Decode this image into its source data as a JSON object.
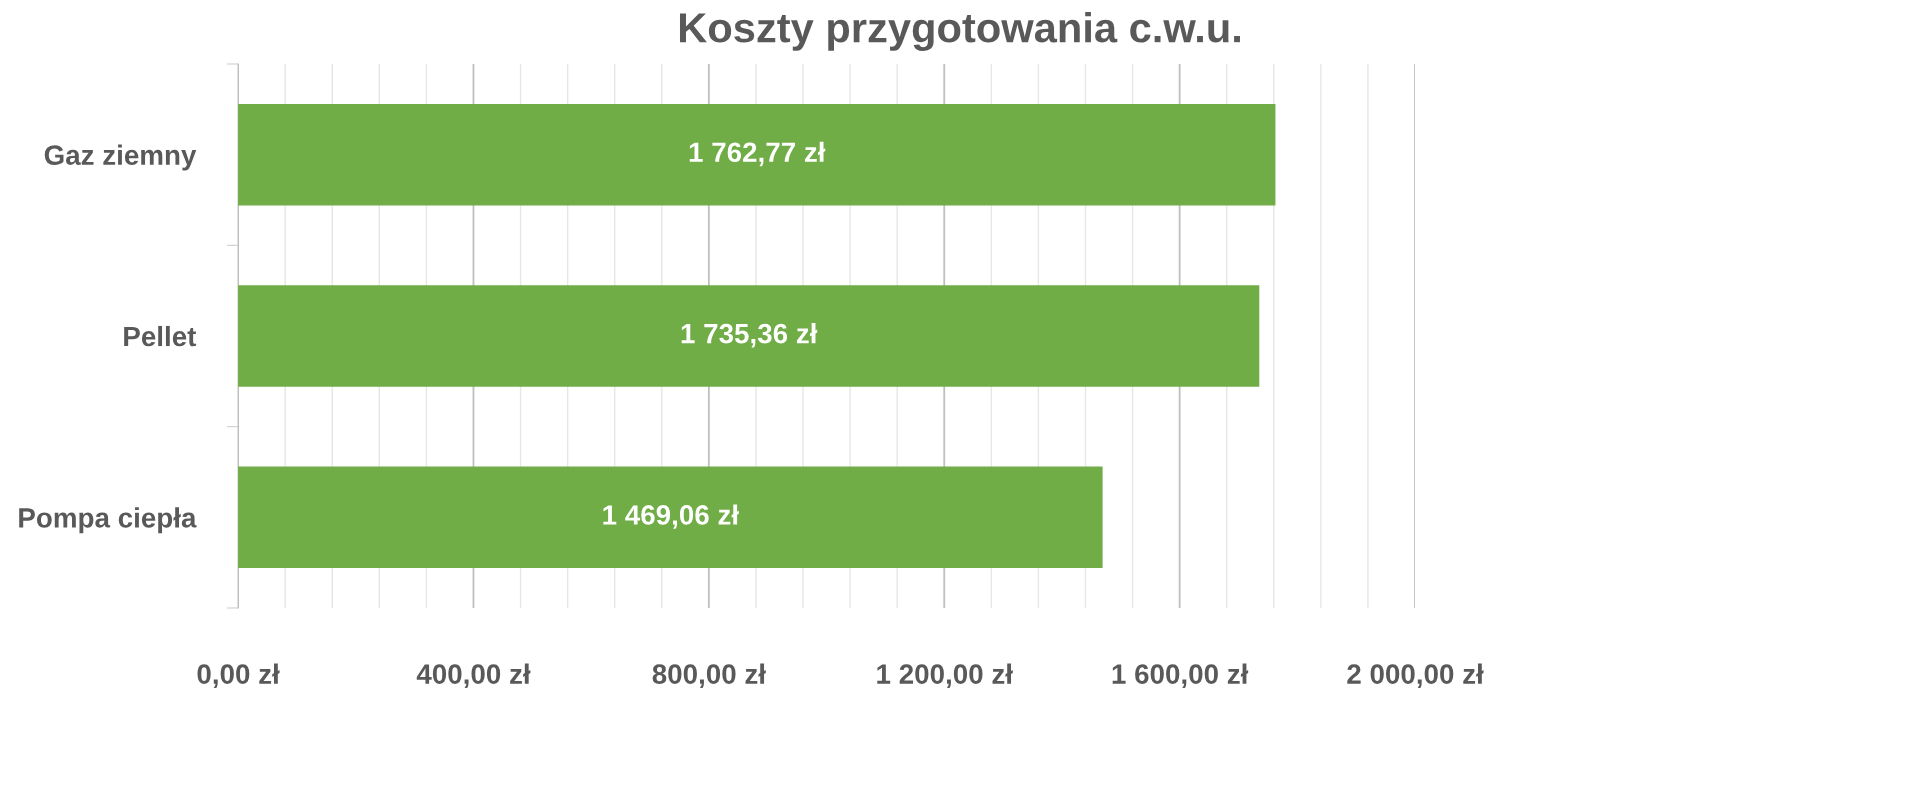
{
  "chart_data": {
    "type": "bar",
    "orientation": "horizontal",
    "title": "Koszty przygotowania c.w.u.",
    "categories": [
      "Gaz ziemny",
      "Pellet",
      "Pompa ciepła"
    ],
    "values": [
      1762.77,
      1735.36,
      1469.06
    ],
    "value_labels": [
      "1 762,77 zł",
      "1 735,36 zł",
      "1 469,06 zł"
    ],
    "color": "#70ad47",
    "xlim": [
      0,
      2000
    ],
    "xticks": [
      {
        "value": 0,
        "label": "0,00 zł"
      },
      {
        "value": 80,
        "label": null
      },
      {
        "value": 160,
        "label": null
      },
      {
        "value": 240,
        "label": null
      },
      {
        "value": 320,
        "label": null
      },
      {
        "value": 400,
        "label": "400,00 zł"
      },
      {
        "value": 480,
        "label": null
      },
      {
        "value": 560,
        "label": null
      },
      {
        "value": 640,
        "label": null
      },
      {
        "value": 720,
        "label": null
      },
      {
        "value": 800,
        "label": "800,00 zł"
      },
      {
        "value": 880,
        "label": null
      },
      {
        "value": 960,
        "label": null
      },
      {
        "value": 1040,
        "label": null
      },
      {
        "value": 1120,
        "label": null
      },
      {
        "value": 1200,
        "label": "1 200,00 zł"
      },
      {
        "value": 1280,
        "label": null
      },
      {
        "value": 1360,
        "label": null
      },
      {
        "value": 1440,
        "label": null
      },
      {
        "value": 1520,
        "label": null
      },
      {
        "value": 1600,
        "label": "1 600,00 zł"
      },
      {
        "value": 1680,
        "label": null
      },
      {
        "value": 1760,
        "label": null
      },
      {
        "value": 1840,
        "label": null
      },
      {
        "value": 1920,
        "label": null
      },
      {
        "value": 2000,
        "label": "2 000,00 zł"
      }
    ],
    "grid": "x"
  }
}
